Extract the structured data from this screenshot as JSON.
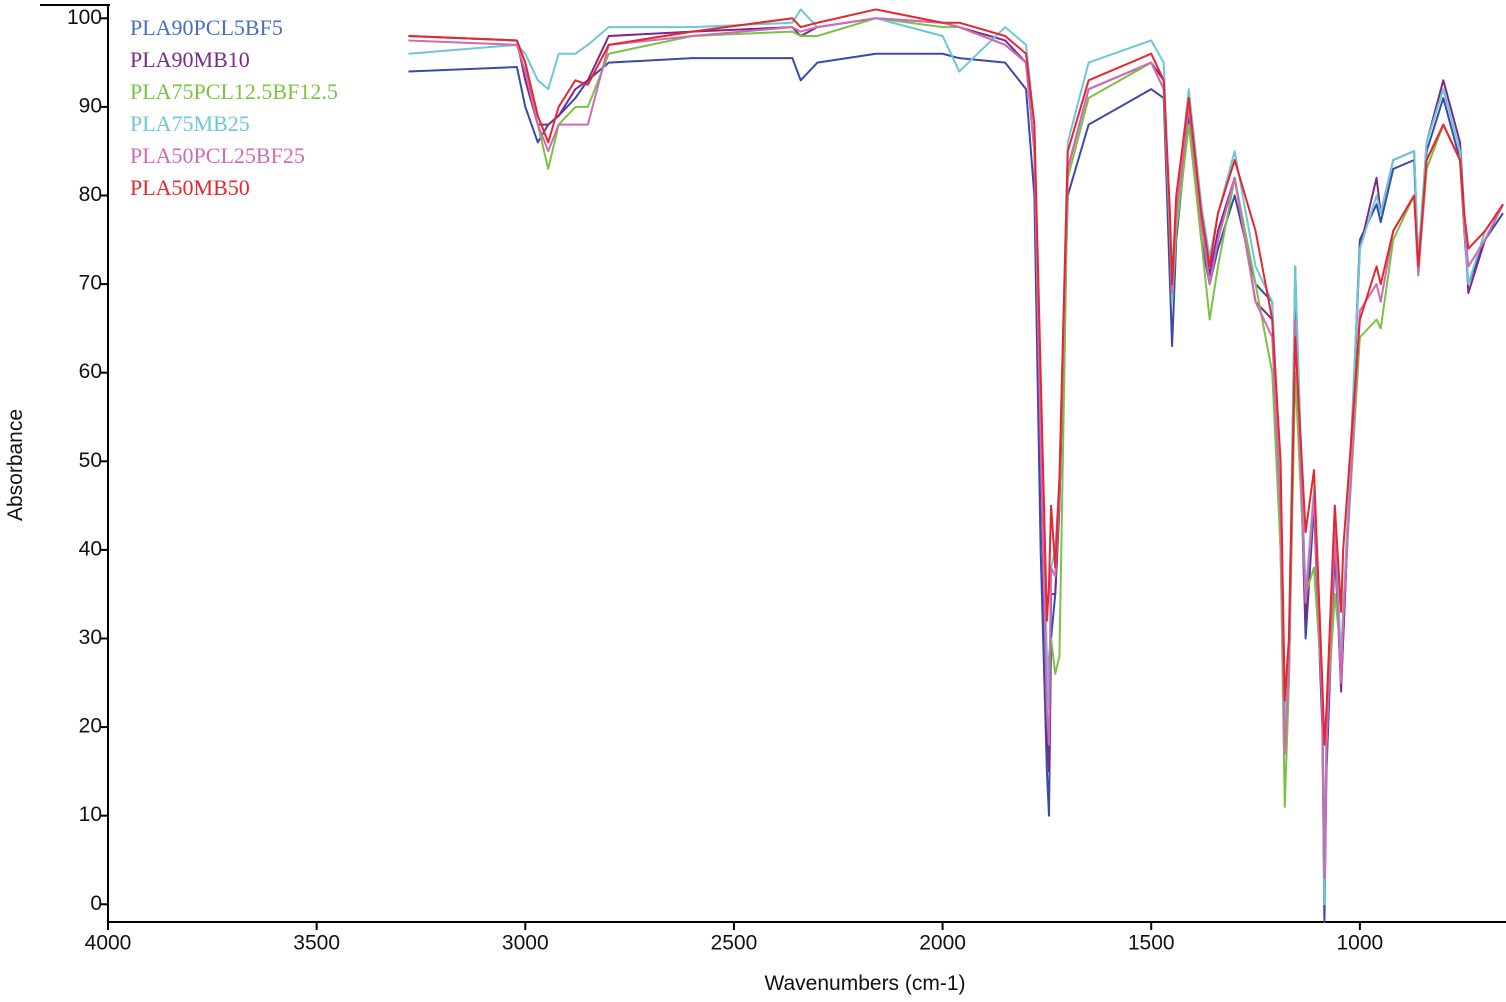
{
  "chart_data": {
    "type": "line",
    "x_label": "Wavenumbers (cm-1)",
    "y_label": "Absorbance",
    "xlim": [
      4000,
      657
    ],
    "ylim": [
      -2,
      101.5
    ],
    "xticks": [
      4000,
      3500,
      3000,
      2500,
      2000,
      1500,
      1000
    ],
    "yticks": [
      0,
      10,
      20,
      30,
      40,
      50,
      60,
      70,
      80,
      90,
      100
    ],
    "grid": false,
    "legend": "upper left",
    "x": [
      3280,
      3020,
      3000,
      2970,
      2945,
      2920,
      2880,
      2850,
      2800,
      2600,
      2360,
      2340,
      2300,
      2160,
      2000,
      1960,
      1850,
      1800,
      1780,
      1765,
      1750,
      1745,
      1740,
      1730,
      1720,
      1700,
      1650,
      1500,
      1470,
      1455,
      1450,
      1440,
      1410,
      1380,
      1360,
      1340,
      1300,
      1250,
      1210,
      1190,
      1180,
      1170,
      1155,
      1130,
      1110,
      1090,
      1085,
      1080,
      1060,
      1045,
      1040,
      1000,
      960,
      950,
      920,
      870,
      860,
      840,
      800,
      760,
      750,
      740,
      700,
      657
    ],
    "series": [
      {
        "name": "PLA90PCL5BF5",
        "color": "#3a4aa8",
        "label_color": "#4a6fc0",
        "values": [
          94,
          94.5,
          90,
          86,
          88,
          89,
          91,
          93,
          95,
          95.5,
          95.5,
          93,
          95,
          96,
          96,
          95.5,
          95,
          92,
          80,
          40,
          15,
          10,
          30,
          35,
          45,
          80,
          88,
          92,
          91,
          70,
          63,
          75,
          89,
          75,
          70,
          74,
          80,
          70,
          68,
          40,
          20,
          25,
          72,
          30,
          45,
          20,
          -2,
          15,
          40,
          25,
          30,
          75,
          79,
          77,
          83,
          84,
          72,
          85,
          91,
          84,
          76,
          70,
          75,
          78
        ]
      },
      {
        "name": "PLA90MB10",
        "color": "#7b2a8a",
        "label_color": "#7b2a8a",
        "values": [
          98,
          97.5,
          93,
          88,
          88,
          89,
          92,
          93,
          98,
          98.5,
          99,
          98,
          99,
          100,
          99.5,
          99,
          97.5,
          95,
          85,
          50,
          20,
          15,
          35,
          35,
          45,
          83,
          92,
          95,
          93,
          75,
          68,
          78,
          90,
          77,
          71,
          76,
          82,
          68,
          66,
          45,
          18,
          27,
          70,
          32,
          46,
          22,
          2,
          17,
          42,
          24,
          30,
          74,
          82,
          78,
          84,
          85,
          72,
          86,
          93,
          86,
          78,
          69,
          75,
          79
        ]
      },
      {
        "name": "PLA75PCL12.5BF12.5",
        "color": "#7cc242",
        "label_color": "#7cc242",
        "values": [
          98,
          97.5,
          95,
          88,
          83,
          88,
          90,
          90,
          96,
          98,
          98.5,
          98,
          98,
          100,
          99,
          99,
          97,
          95,
          85,
          55,
          25,
          28,
          30,
          26,
          28,
          82,
          91,
          95,
          92,
          75,
          68,
          76,
          88,
          75,
          66,
          72,
          82,
          70,
          60,
          40,
          11,
          25,
          60,
          35,
          38,
          24,
          1,
          20,
          35,
          28,
          33,
          64,
          66,
          65,
          75,
          80,
          71,
          83,
          88,
          84,
          76,
          72,
          75,
          79
        ]
      },
      {
        "name": "PLA75MB25",
        "color": "#6cc8d8",
        "label_color": "#6cc8d8",
        "values": [
          96,
          97,
          96,
          93,
          92,
          96,
          96,
          97,
          99,
          99,
          99.5,
          101,
          99,
          100,
          98,
          94,
          99,
          97,
          88,
          55,
          28,
          22,
          38,
          40,
          48,
          86,
          95,
          97.5,
          95,
          76,
          68,
          79,
          92,
          79,
          73,
          78,
          85,
          72,
          68,
          48,
          20,
          30,
          72,
          35,
          47,
          23,
          0,
          18,
          45,
          27,
          33,
          74,
          80,
          78,
          84,
          85,
          73,
          86,
          92,
          85,
          77,
          70,
          76,
          79
        ]
      },
      {
        "name": "PLA50PCL25BF25",
        "color": "#d06ab8",
        "label_color": "#d06ab8",
        "values": [
          97.5,
          97,
          94,
          88,
          85,
          88,
          88,
          88,
          97,
          98,
          99,
          98.5,
          99,
          100,
          99.5,
          99,
          97,
          95,
          85,
          52,
          22,
          18,
          38,
          37,
          46,
          83,
          92,
          95,
          92,
          76,
          69,
          78,
          90,
          77,
          70,
          75,
          82,
          68,
          64,
          44,
          17,
          27,
          66,
          34,
          46,
          22,
          3,
          18,
          42,
          25,
          32,
          67,
          70,
          68,
          76,
          80,
          71,
          84,
          88,
          84,
          77,
          72,
          75,
          79
        ]
      },
      {
        "name": "PLA50MB50",
        "color": "#e8262e",
        "label_color": "#e8262e",
        "values": [
          98,
          97.5,
          95,
          89,
          86,
          90,
          93,
          92.5,
          97,
          98.5,
          100,
          99,
          99.5,
          101,
          99.5,
          99.5,
          98,
          96,
          88,
          60,
          32,
          36,
          45,
          38,
          48,
          85,
          93,
          96,
          93,
          78,
          70,
          80,
          91,
          78,
          72,
          78,
          84,
          76,
          66,
          50,
          23,
          30,
          64,
          42,
          49,
          25,
          18,
          22,
          45,
          33,
          40,
          66,
          72,
          70,
          76,
          80,
          72,
          84,
          88,
          84,
          78,
          74,
          76,
          79
        ]
      }
    ]
  }
}
